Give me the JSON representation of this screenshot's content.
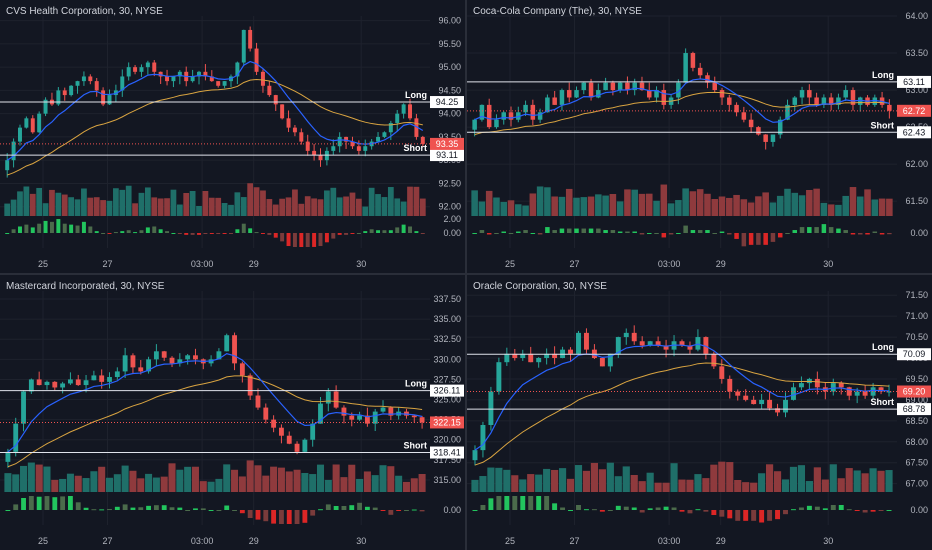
{
  "colors": {
    "bg": "#131722",
    "grid": "#1e222d",
    "up": "#26a69a",
    "down": "#ef5350",
    "vol_up": "#1f6f69",
    "vol_down": "#8f3a3d",
    "ma_fast": "#2962ff",
    "ma_slow": "#d9a441",
    "osc_up_strong": "#22c55e",
    "osc_up_weak": "#4b6b4b",
    "osc_down_strong": "#dc2626",
    "osc_down_weak": "#7a3b3b",
    "level": "#e0e3eb"
  },
  "time_axis": [
    "25",
    "27",
    "03:00",
    "29",
    "30"
  ],
  "panels": [
    {
      "title": "CVS Health Corporation, 30, NYSE",
      "price_ticks": [
        "96.00",
        "95.50",
        "95.00",
        "94.50",
        "94.00",
        "93.50",
        "93.00",
        "92.50",
        "92.00"
      ],
      "osc_ticks": [
        "2.00",
        "0.00"
      ],
      "long_label": "Long",
      "short_label": "Short",
      "long_value": "94.25",
      "short_value": "93.11",
      "last_value": "93.35"
    },
    {
      "title": "Coca-Cola Company (The), 30, NYSE",
      "price_ticks": [
        "64.00",
        "63.50",
        "63.00",
        "62.50",
        "62.00",
        "61.50"
      ],
      "osc_ticks": [
        "0.00"
      ],
      "long_label": "Long",
      "short_label": "Short",
      "long_value": "63.11",
      "short_value": "62.43",
      "last_value": "62.72"
    },
    {
      "title": "Mastercard Incorporated, 30, NYSE",
      "price_ticks": [
        "337.50",
        "335.00",
        "332.50",
        "330.00",
        "327.50",
        "325.00",
        "322.50",
        "320.00",
        "317.50",
        "315.00"
      ],
      "osc_ticks": [
        "0.00"
      ],
      "long_label": "Long",
      "short_label": "Short",
      "long_value": "326.11",
      "short_value": "318.41",
      "last_value": "322.15"
    },
    {
      "title": "Oracle Corporation, 30, NYSE",
      "price_ticks": [
        "71.50",
        "71.00",
        "70.50",
        "70.00",
        "69.50",
        "69.00",
        "68.50",
        "68.00",
        "67.50",
        "67.00"
      ],
      "osc_ticks": [
        "0.00"
      ],
      "long_label": "Long",
      "short_label": "Short",
      "long_value": "70.09",
      "short_value": "68.78",
      "last_value": "69.20"
    }
  ],
  "chart_data": [
    {
      "type": "candlestick",
      "title": "CVS Health Corporation, 30, NYSE",
      "ylim": [
        91.8,
        96.1
      ],
      "closes": [
        93.0,
        93.4,
        93.7,
        93.9,
        93.6,
        94.0,
        94.3,
        94.2,
        94.5,
        94.4,
        94.6,
        94.7,
        94.8,
        94.7,
        94.5,
        94.2,
        94.4,
        94.5,
        94.8,
        95.0,
        94.9,
        95.0,
        95.1,
        94.9,
        94.8,
        94.7,
        94.8,
        94.9,
        94.7,
        94.8,
        94.9,
        94.8,
        94.7,
        94.6,
        94.7,
        94.8,
        95.1,
        95.8,
        95.4,
        94.9,
        94.6,
        94.4,
        94.2,
        93.9,
        93.7,
        93.6,
        93.4,
        93.2,
        93.1,
        93.0,
        93.2,
        93.3,
        93.5,
        93.4,
        93.3,
        93.2,
        93.3,
        93.4,
        93.5,
        93.6,
        93.8,
        94.0,
        94.2,
        93.9,
        93.5,
        93.35
      ],
      "levels": {
        "long": 94.25,
        "short": 93.11,
        "last": 93.35
      }
    },
    {
      "type": "candlestick",
      "title": "Coca-Cola Company (The), 30, NYSE",
      "ylim": [
        61.3,
        64.0
      ],
      "closes": [
        62.6,
        62.8,
        62.5,
        62.6,
        62.7,
        62.6,
        62.7,
        62.8,
        62.6,
        62.7,
        62.9,
        62.8,
        63.0,
        62.9,
        63.0,
        63.1,
        62.9,
        63.0,
        63.1,
        63.0,
        63.1,
        63.0,
        63.1,
        63.0,
        62.9,
        63.0,
        62.8,
        62.9,
        63.1,
        63.5,
        63.3,
        63.2,
        63.1,
        63.0,
        62.9,
        62.8,
        62.7,
        62.6,
        62.5,
        62.4,
        62.3,
        62.4,
        62.6,
        62.8,
        62.9,
        63.0,
        62.9,
        62.8,
        62.9,
        62.8,
        62.9,
        63.0,
        62.8,
        62.9,
        62.8,
        62.9,
        62.8,
        62.72
      ],
      "levels": {
        "long": 63.11,
        "short": 62.43,
        "last": 62.72
      }
    },
    {
      "type": "candlestick",
      "title": "Mastercard Incorporated, 30, NYSE",
      "ylim": [
        313.5,
        338.5
      ],
      "closes": [
        318.5,
        322.0,
        326.0,
        327.5,
        326.8,
        327.2,
        326.5,
        327.0,
        327.5,
        326.8,
        327.4,
        328.0,
        327.2,
        327.8,
        328.5,
        330.5,
        329.0,
        328.5,
        330.0,
        331.0,
        330.2,
        329.5,
        330.0,
        330.5,
        330.0,
        329.5,
        330.0,
        331.0,
        333.0,
        329.5,
        328.0,
        325.5,
        324.0,
        322.5,
        321.5,
        320.5,
        319.5,
        318.5,
        320.0,
        322.0,
        324.5,
        326.0,
        324.0,
        323.0,
        322.5,
        323.0,
        322.0,
        323.5,
        324.0,
        323.0,
        323.5,
        323.0,
        322.8,
        322.15
      ],
      "levels": {
        "long": 326.11,
        "short": 318.41,
        "last": 322.15
      }
    },
    {
      "type": "candlestick",
      "title": "Oracle Corporation, 30, NYSE",
      "ylim": [
        66.8,
        71.6
      ],
      "closes": [
        67.8,
        68.4,
        69.2,
        69.9,
        70.1,
        70.0,
        70.1,
        69.9,
        70.0,
        70.1,
        70.0,
        70.2,
        70.1,
        70.6,
        70.2,
        70.0,
        69.8,
        70.1,
        70.5,
        70.6,
        70.4,
        70.3,
        70.4,
        70.3,
        70.2,
        70.4,
        70.3,
        70.2,
        70.5,
        70.1,
        69.8,
        69.5,
        69.2,
        69.1,
        69.0,
        68.9,
        69.0,
        68.8,
        68.7,
        69.0,
        69.3,
        69.4,
        69.5,
        69.3,
        69.2,
        69.4,
        69.3,
        69.1,
        69.2,
        69.1,
        69.3,
        69.2,
        69.2
      ],
      "levels": {
        "long": 70.09,
        "short": 68.78,
        "last": 69.2
      }
    }
  ]
}
